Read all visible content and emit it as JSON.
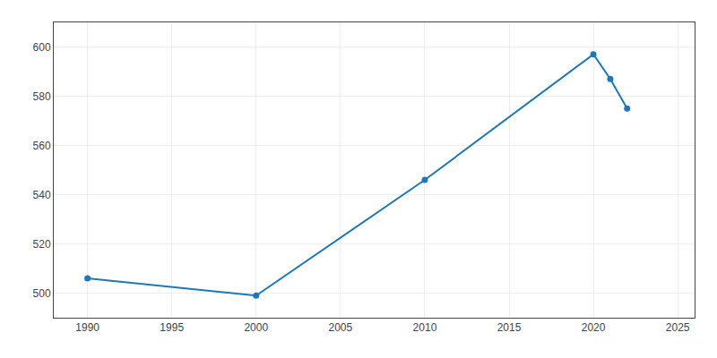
{
  "chart_data": {
    "type": "line",
    "x": [
      1990,
      2000,
      2010,
      2020,
      2021,
      2022
    ],
    "values": [
      506,
      499,
      546,
      597,
      587,
      575
    ],
    "marker": "circle",
    "xlim": [
      1988,
      2026
    ],
    "ylim": [
      490,
      610
    ],
    "xticks": [
      1990,
      1995,
      2000,
      2005,
      2010,
      2015,
      2020,
      2025
    ],
    "yticks": [
      500,
      520,
      540,
      560,
      580,
      600
    ],
    "grid": true
  }
}
